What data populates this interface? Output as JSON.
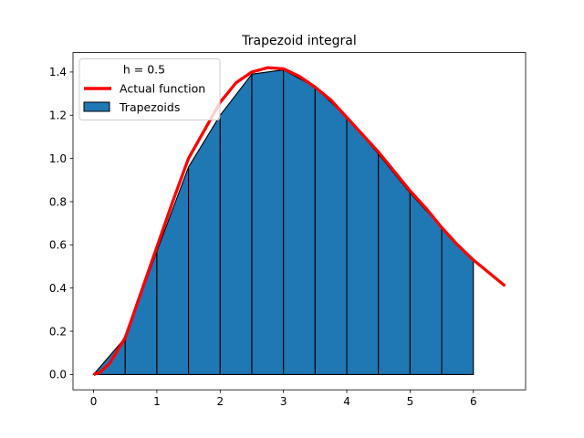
{
  "chart_data": {
    "type": "area",
    "title": "Trapezoid integral",
    "xlabel": "",
    "ylabel": "",
    "xlim": [
      -0.325,
      6.825
    ],
    "ylim": [
      -0.071,
      1.49
    ],
    "x_ticks": [
      0,
      1,
      2,
      3,
      4,
      5,
      6
    ],
    "y_ticks": [
      0.0,
      0.2,
      0.4,
      0.6,
      0.8,
      1.0,
      1.2,
      1.4
    ],
    "x_tick_labels": [
      "0",
      "1",
      "2",
      "3",
      "4",
      "5",
      "6"
    ],
    "y_tick_labels": [
      "0.0",
      "0.2",
      "0.4",
      "0.6",
      "0.8",
      "1.0",
      "1.2",
      "1.4"
    ],
    "grid": false,
    "legend_position": "top-left",
    "legend": {
      "title": "h = 0.5",
      "entries": [
        "Actual function",
        "Trapezoids"
      ]
    },
    "series": [
      {
        "name": "Actual function",
        "kind": "line",
        "color": "#ff0000",
        "x": [
          0,
          0.1,
          0.25,
          0.5,
          0.75,
          1.0,
          1.25,
          1.5,
          1.75,
          2.0,
          2.25,
          2.5,
          2.75,
          3.0,
          3.25,
          3.5,
          3.75,
          4.0,
          4.25,
          4.5,
          4.75,
          5.0,
          5.25,
          5.5,
          5.75,
          6.0,
          6.25,
          6.5
        ],
        "y": [
          0.0,
          0.01,
          0.05,
          0.17,
          0.38,
          0.59,
          0.8,
          1.0,
          1.13,
          1.26,
          1.35,
          1.4,
          1.42,
          1.415,
          1.38,
          1.33,
          1.27,
          1.19,
          1.11,
          1.03,
          0.94,
          0.85,
          0.77,
          0.68,
          0.6,
          0.53,
          0.47,
          0.41
        ]
      },
      {
        "name": "Trapezoids",
        "kind": "trapezoids",
        "color": "#1f77b4",
        "edgecolor": "#000000",
        "x": [
          0,
          0.5,
          1.0,
          1.5,
          2.0,
          2.5,
          3.0,
          3.5,
          4.0,
          4.5,
          5.0,
          5.5,
          6.0
        ],
        "y": [
          0.0,
          0.17,
          0.57,
          0.96,
          1.2,
          1.39,
          1.41,
          1.33,
          1.19,
          1.02,
          0.84,
          0.68,
          0.53
        ]
      }
    ]
  }
}
